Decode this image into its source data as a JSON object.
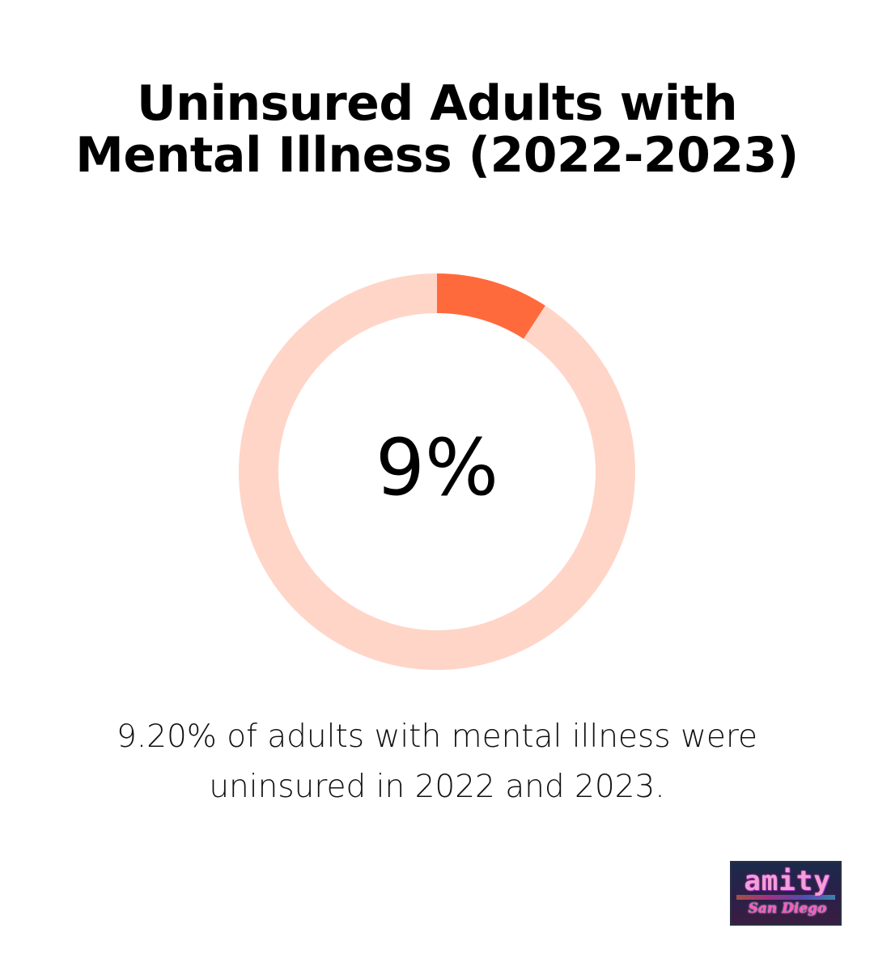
{
  "chart_data": {
    "type": "pie",
    "title_lines": [
      "Uninsured Adults with",
      "Mental Illness (2022-2023)"
    ],
    "slices": [
      {
        "value": 9.2,
        "color": "#ff6a3d"
      },
      {
        "value": 90.8,
        "color": "#ffd5c8"
      }
    ],
    "donut": true,
    "center_label": "9%",
    "caption_lines": [
      "9.20% of adults with mental illness were",
      "uninsured in 2022 and 2023."
    ]
  },
  "logo": {
    "wordmark": "amity",
    "script": "San Diego"
  }
}
